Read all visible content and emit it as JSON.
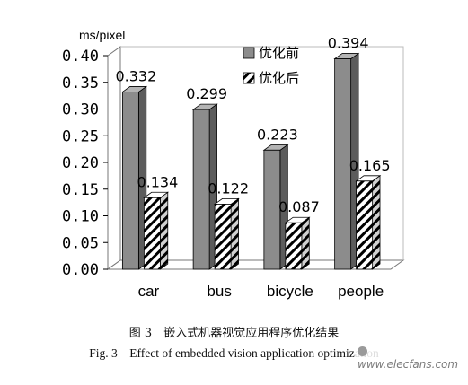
{
  "chart_data": {
    "type": "bar",
    "ylabel": "ms/pixel",
    "ylim": [
      0,
      0.4
    ],
    "yticks": [
      "0.00",
      "0.05",
      "0.10",
      "0.15",
      "0.20",
      "0.25",
      "0.30",
      "0.35",
      "0.40"
    ],
    "categories": [
      "car",
      "bus",
      "bicycle",
      "people"
    ],
    "series": [
      {
        "name": "优化前",
        "values": [
          0.332,
          0.299,
          0.223,
          0.394
        ],
        "labels": [
          "0.332",
          "0.299",
          "0.223",
          "0.394"
        ],
        "pattern": "solid-gray"
      },
      {
        "name": "优化后",
        "values": [
          0.134,
          0.122,
          0.087,
          0.165
        ],
        "labels": [
          "0.134",
          "0.122",
          "0.087",
          "0.165"
        ],
        "pattern": "diagonal-hatch"
      }
    ],
    "legend_position": "top-right",
    "grid": false,
    "style": "3d-column"
  },
  "caption_cn": "图 3　嵌入式机器视觉应用程序优化结果",
  "caption_en": "Fig. 3　Effect of embedded vision application optimization",
  "watermark": "www.elecfans.com",
  "colors": {
    "bar_front": "#8c8c8c",
    "bar_side": "#5c5c5c",
    "bar_top": "#b4b4b4",
    "wall": "#ffffff",
    "axis": "#777777"
  }
}
